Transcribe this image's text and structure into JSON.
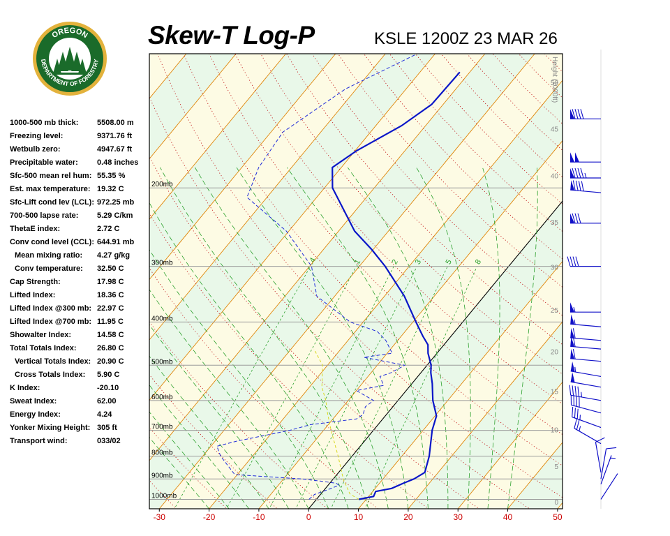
{
  "header": {
    "title": "Skew-T Log-P",
    "subtitle": "KSLE 1200Z 23 MAR 26"
  },
  "logo": {
    "top_text": "OREGON",
    "bottom_text": "DEPARTMENT OF FORESTRY",
    "ring_color": "#1a6b2a",
    "inner_color": "#ffffff",
    "tree_color": "#1a6b2a",
    "outer_color": "#e3b23c"
  },
  "indices": [
    {
      "label": "1000-500 mb thick:",
      "value": "5508.00 m",
      "indent": false
    },
    {
      "label": "Freezing level:",
      "value": "9371.76 ft",
      "indent": false
    },
    {
      "label": "Wetbulb zero:",
      "value": "4947.67 ft",
      "indent": false
    },
    {
      "label": "Precipitable water:",
      "value": "0.48 inches",
      "indent": false
    },
    {
      "label": "Sfc-500 mean rel hum:",
      "value": "55.35 %",
      "indent": false
    },
    {
      "label": "Est. max temperature:",
      "value": "19.32 C",
      "indent": false
    },
    {
      "label": "Sfc-Lift cond lev (LCL):",
      "value": "972.25 mb",
      "indent": false
    },
    {
      "label": "700-500 lapse rate:",
      "value": "5.29 C/km",
      "indent": false
    },
    {
      "label": "ThetaE index:",
      "value": "2.72 C",
      "indent": false
    },
    {
      "label": "Conv cond level (CCL):",
      "value": "644.91 mb",
      "indent": false
    },
    {
      "label": "Mean mixing ratio:",
      "value": "4.27 g/kg",
      "indent": true
    },
    {
      "label": "Conv temperature:",
      "value": "32.50 C",
      "indent": true
    },
    {
      "label": "Cap Strength:",
      "value": "17.98 C",
      "indent": false
    },
    {
      "label": "Lifted Index:",
      "value": "18.36 C",
      "indent": false
    },
    {
      "label": "Lifted Index @300 mb:",
      "value": "22.97 C",
      "indent": false
    },
    {
      "label": "Lifted Index @700 mb:",
      "value": "11.95 C",
      "indent": false
    },
    {
      "label": "Showalter Index:",
      "value": "14.58 C",
      "indent": false
    },
    {
      "label": "Total Totals Index:",
      "value": "26.80 C",
      "indent": false
    },
    {
      "label": "Vertical Totals Index:",
      "value": "20.90 C",
      "indent": true
    },
    {
      "label": "Cross Totals Index:",
      "value": "5.90 C",
      "indent": true
    },
    {
      "label": "K Index:",
      "value": "-20.10",
      "indent": false
    },
    {
      "label": "Sweat Index:",
      "value": "62.00",
      "indent": false
    },
    {
      "label": "Energy Index:",
      "value": "4.24",
      "indent": false
    },
    {
      "label": "Yonker Mixing Height:",
      "value": "305 ft",
      "indent": false
    },
    {
      "label": "Transport wind:",
      "value": "033/02",
      "indent": false
    }
  ],
  "chart_data": {
    "type": "line",
    "subtype": "skew-t log-p",
    "x_axis": {
      "label": "",
      "ticks": [
        -30,
        -20,
        -10,
        0,
        10,
        20,
        30,
        40,
        50
      ],
      "range": [
        -32,
        51
      ],
      "unit": "C",
      "tick_color": "#cc0000"
    },
    "y_axis": {
      "scale": "log",
      "range_mb": [
        1050,
        100
      ],
      "isobars": [
        {
          "p": 200,
          "label": "200mb"
        },
        {
          "p": 300,
          "label": "300mb"
        },
        {
          "p": 400,
          "label": "400mb"
        },
        {
          "p": 500,
          "label": "500mb"
        },
        {
          "p": 600,
          "label": "600mb"
        },
        {
          "p": 700,
          "label": "700mb"
        },
        {
          "p": 800,
          "label": "800mb"
        },
        {
          "p": 900,
          "label": "900mb"
        },
        {
          "p": 1000,
          "label": "1000mb"
        }
      ]
    },
    "height_axis": {
      "label": "Height (1000ft)",
      "ticks": [
        "0",
        "5",
        "10",
        "15",
        "20",
        "25",
        "30",
        "35",
        "40",
        "45",
        "50"
      ]
    },
    "mixing_ratio_labels": [
      ".4",
      "1",
      "2",
      "3",
      "5",
      "8"
    ],
    "zero_isotherm_color": "#000000",
    "background_colors": {
      "warm_band": "#fdfbe4",
      "cool_band": "#e9f8e9"
    },
    "series": [
      {
        "kind": "temperature",
        "color": "#0a16c8",
        "points": [
          {
            "p": 1000,
            "t": 8.5
          },
          {
            "p": 985,
            "t": 11.0
          },
          {
            "p": 960,
            "t": 10.6
          },
          {
            "p": 945,
            "t": 13.3
          },
          {
            "p": 920,
            "t": 14.8
          },
          {
            "p": 900,
            "t": 16.2
          },
          {
            "p": 870,
            "t": 17.3
          },
          {
            "p": 800,
            "t": 15.5
          },
          {
            "p": 700,
            "t": 11.8
          },
          {
            "p": 650,
            "t": 10.3
          },
          {
            "p": 600,
            "t": 7.0
          },
          {
            "p": 550,
            "t": 4.1
          },
          {
            "p": 520,
            "t": 2.0
          },
          {
            "p": 500,
            "t": 0.8
          },
          {
            "p": 470,
            "t": -1.8
          },
          {
            "p": 450,
            "t": -3.2
          },
          {
            "p": 430,
            "t": -5.7
          },
          {
            "p": 400,
            "t": -9.4
          },
          {
            "p": 350,
            "t": -16.0
          },
          {
            "p": 300,
            "t": -24.8
          },
          {
            "p": 275,
            "t": -30.3
          },
          {
            "p": 250,
            "t": -36.8
          },
          {
            "p": 200,
            "t": -48.4
          },
          {
            "p": 180,
            "t": -51.8
          },
          {
            "p": 165,
            "t": -49.7
          },
          {
            "p": 145,
            "t": -44.8
          },
          {
            "p": 130,
            "t": -42.3
          },
          {
            "p": 110,
            "t": -42.0
          }
        ]
      },
      {
        "kind": "dewpoint",
        "color": "#1f2ad9",
        "points": [
          {
            "p": 1000,
            "t": -1.5
          },
          {
            "p": 975,
            "t": -1.2
          },
          {
            "p": 950,
            "t": 0.8
          },
          {
            "p": 930,
            "t": 2.2
          },
          {
            "p": 920,
            "t": 1.3
          },
          {
            "p": 910,
            "t": -2.3
          },
          {
            "p": 900,
            "t": -6.2
          },
          {
            "p": 880,
            "t": -20.5
          },
          {
            "p": 800,
            "t": -26.4
          },
          {
            "p": 760,
            "t": -28.8
          },
          {
            "p": 740,
            "t": -25.6
          },
          {
            "p": 700,
            "t": -16.8
          },
          {
            "p": 680,
            "t": -13.6
          },
          {
            "p": 660,
            "t": -5.3
          },
          {
            "p": 645,
            "t": -4.7
          },
          {
            "p": 620,
            "t": -5.5
          },
          {
            "p": 600,
            "t": -4.9
          },
          {
            "p": 570,
            "t": -10.0
          },
          {
            "p": 555,
            "t": -5.4
          },
          {
            "p": 530,
            "t": -7.6
          },
          {
            "p": 520,
            "t": -6.0
          },
          {
            "p": 500,
            "t": -4.5
          },
          {
            "p": 480,
            "t": -14.0
          },
          {
            "p": 470,
            "t": -9.0
          },
          {
            "p": 440,
            "t": -12.4
          },
          {
            "p": 420,
            "t": -15.6
          },
          {
            "p": 400,
            "t": -22.6
          },
          {
            "p": 350,
            "t": -33.6
          },
          {
            "p": 300,
            "t": -39.6
          },
          {
            "p": 250,
            "t": -50.5
          },
          {
            "p": 210,
            "t": -64.0
          },
          {
            "p": 180,
            "t": -66.6
          },
          {
            "p": 150,
            "t": -67.6
          },
          {
            "p": 120,
            "t": -62.2
          },
          {
            "p": 100,
            "t": -53.6
          }
        ]
      },
      {
        "kind": "parcel",
        "color": "#d8d820",
        "points": [
          {
            "p": 1000,
            "t": 8.5
          },
          {
            "p": 972,
            "t": 5.8
          },
          {
            "p": 900,
            "t": 2.0
          },
          {
            "p": 800,
            "t": -2.8
          },
          {
            "p": 700,
            "t": -8.5
          },
          {
            "p": 645,
            "t": -11.8
          },
          {
            "p": 600,
            "t": -14.5
          },
          {
            "p": 560,
            "t": -17.5
          },
          {
            "p": 500,
            "t": -21.0
          },
          {
            "p": 460,
            "t": -25.4
          }
        ]
      }
    ],
    "wind_barbs": [
      {
        "p": 1000,
        "dir": 33,
        "kt": 2
      },
      {
        "p": 925,
        "dir": 20,
        "kt": 5
      },
      {
        "p": 900,
        "dir": 10,
        "kt": 10
      },
      {
        "p": 870,
        "dir": 350,
        "kt": 10
      },
      {
        "p": 750,
        "dir": 300,
        "kt": 25
      },
      {
        "p": 690,
        "dir": 290,
        "kt": 35
      },
      {
        "p": 640,
        "dir": 285,
        "kt": 40
      },
      {
        "p": 600,
        "dir": 280,
        "kt": 45
      },
      {
        "p": 560,
        "dir": 280,
        "kt": 50
      },
      {
        "p": 530,
        "dir": 280,
        "kt": 55
      },
      {
        "p": 490,
        "dir": 275,
        "kt": 60
      },
      {
        "p": 460,
        "dir": 275,
        "kt": 60
      },
      {
        "p": 440,
        "dir": 275,
        "kt": 60
      },
      {
        "p": 410,
        "dir": 275,
        "kt": 55
      },
      {
        "p": 380,
        "dir": 270,
        "kt": 55
      },
      {
        "p": 300,
        "dir": 270,
        "kt": 40
      },
      {
        "p": 240,
        "dir": 270,
        "kt": 80
      },
      {
        "p": 205,
        "dir": 275,
        "kt": 90
      },
      {
        "p": 190,
        "dir": 270,
        "kt": 95
      },
      {
        "p": 175,
        "dir": 270,
        "kt": 100
      },
      {
        "p": 140,
        "dir": 270,
        "kt": 90
      }
    ]
  }
}
